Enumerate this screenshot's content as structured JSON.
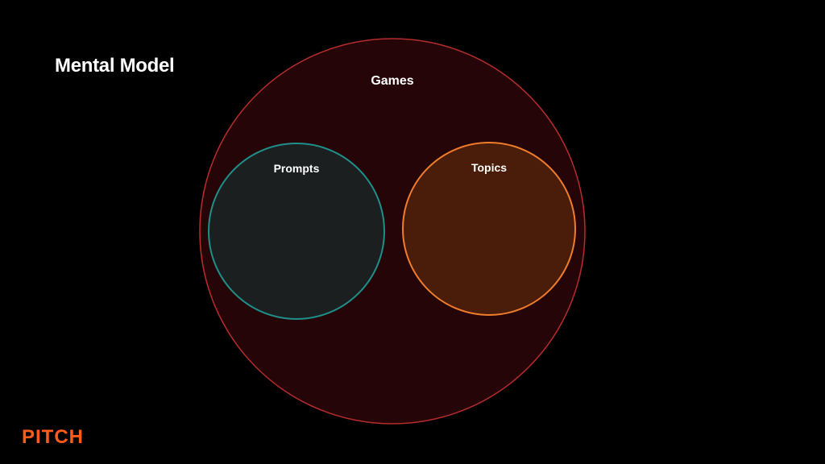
{
  "slide": {
    "title": "Mental Model",
    "logo": "PITCH"
  },
  "diagram": {
    "outer": {
      "label": "Games",
      "stroke": "#b72c2c",
      "fill": "#250508"
    },
    "left": {
      "label": "Prompts",
      "stroke": "#1f8f8a",
      "fill": "#1b1f1f"
    },
    "right": {
      "label": "Topics",
      "stroke": "#f07d2a",
      "fill": "#4a1c0a"
    }
  },
  "colors": {
    "background": "#000000",
    "text": "#ffffff",
    "brand": "#ff5c1a"
  }
}
